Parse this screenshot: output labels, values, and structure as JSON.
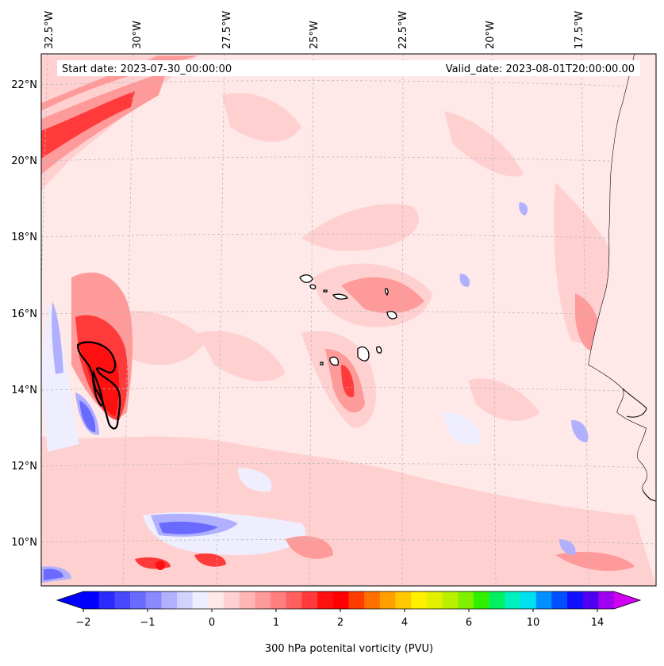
{
  "map": {
    "start_label": "Start date: 2023-07-30_00:00:00",
    "valid_label": "Valid_date: 2023-08-01T20:00:00.00",
    "lon_labels": [
      "32.5°W",
      "30°W",
      "27.5°W",
      "25°W",
      "22.5°W",
      "20°W",
      "17.5°W"
    ],
    "lat_labels": [
      "22°N",
      "20°N",
      "18°N",
      "16°N",
      "14°N",
      "12°N",
      "10°N"
    ],
    "field_colors": {
      "weak_positive": "#ffe8e8",
      "light_positive": "#ffd0d0",
      "medium_positive": "#ff9a9a",
      "strong_positive": "#ff3a3a",
      "very_strong_positive": "#ff1010",
      "weak_negative": "#eeeeff",
      "light_negative": "#b0b0ff",
      "medium_negative": "#6a6aff",
      "strong_negative": "#2a2aff",
      "coastline": "#000000"
    }
  },
  "colorbar": {
    "label": "300 hPa potenital vorticity (PVU)",
    "tick_labels": [
      "−2",
      "−1",
      "0",
      "1",
      "2",
      "4",
      "6",
      "10",
      "14"
    ],
    "colors": [
      "#0000ff",
      "#2a2aff",
      "#4848ff",
      "#6a6aff",
      "#8a8aff",
      "#b0b0ff",
      "#d2d2ff",
      "#eeeeff",
      "#ffe8e8",
      "#ffd0d0",
      "#ffb5b5",
      "#ff9a9a",
      "#ff7f7f",
      "#ff5f5f",
      "#ff3a3a",
      "#ff1010",
      "#ff0000",
      "#ff3c00",
      "#ff7000",
      "#ffa000",
      "#ffc800",
      "#fff000",
      "#e0f000",
      "#b8f000",
      "#80f000",
      "#30f000",
      "#00f060",
      "#00f0c0",
      "#00e0f0",
      "#0090ff",
      "#0050ff",
      "#1010ff",
      "#5000f0",
      "#a000f0"
    ],
    "extend_low": "#0000ff",
    "extend_high": "#d000f0"
  }
}
